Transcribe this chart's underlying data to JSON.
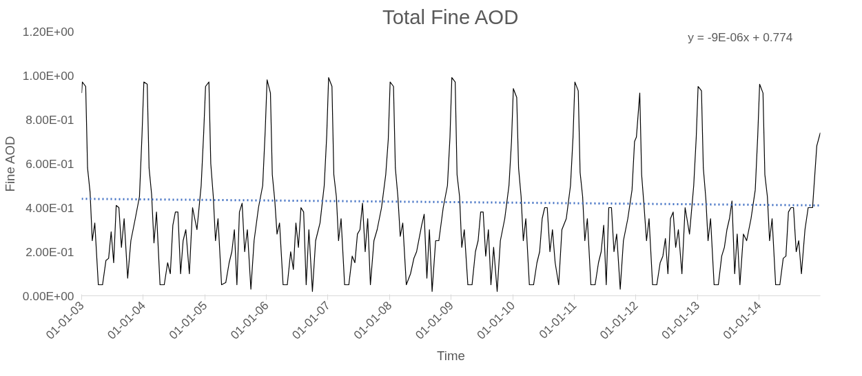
{
  "chart_data": {
    "type": "line",
    "title": "Total Fine AOD",
    "xlabel": "Time",
    "ylabel": "Fine AOD",
    "annotations": [
      "y = -9E-06x + 0.774"
    ],
    "xlim": [
      "2003-01-01",
      "2014-12-31"
    ],
    "ylim": [
      0,
      1.2
    ],
    "yticks": [
      {
        "value": 0,
        "label": "0.00E+00"
      },
      {
        "value": 0.2,
        "label": "2.00E-01"
      },
      {
        "value": 0.4,
        "label": "4.00E-01"
      },
      {
        "value": 0.6,
        "label": "6.00E-01"
      },
      {
        "value": 0.8,
        "label": "8.00E-01"
      },
      {
        "value": 1.0,
        "label": "1.00E+00"
      },
      {
        "value": 1.2,
        "label": "1.20E+00"
      }
    ],
    "xticks": [
      {
        "value": "2003-01-01",
        "label": "01-01-03"
      },
      {
        "value": "2004-01-01",
        "label": "01-01-04"
      },
      {
        "value": "2005-01-01",
        "label": "01-01-05"
      },
      {
        "value": "2006-01-01",
        "label": "01-01-06"
      },
      {
        "value": "2007-01-01",
        "label": "01-01-07"
      },
      {
        "value": "2008-01-01",
        "label": "01-01-08"
      },
      {
        "value": "2009-01-01",
        "label": "01-01-09"
      },
      {
        "value": "2010-01-01",
        "label": "01-01-10"
      },
      {
        "value": "2011-01-01",
        "label": "01-01-11"
      },
      {
        "value": "2012-01-01",
        "label": "01-01-12"
      },
      {
        "value": "2013-01-01",
        "label": "01-01-13"
      },
      {
        "value": "2014-01-01",
        "label": "01-01-14"
      }
    ],
    "grid": false,
    "series": [
      {
        "color": "#000000",
        "line_style": "solid",
        "x": [
          "2003-01-01",
          "2003-01-05",
          "2003-01-25",
          "2003-02-05",
          "2003-02-20",
          "2003-03-05",
          "2003-03-20",
          "2003-04-10",
          "2003-05-05",
          "2003-05-25",
          "2003-06-10",
          "2003-06-25",
          "2003-07-10",
          "2003-07-25",
          "2003-08-10",
          "2003-08-25",
          "2003-09-10",
          "2003-10-01",
          "2003-10-20",
          "2003-11-15",
          "2003-12-10",
          "2003-12-25",
          "2004-01-05",
          "2004-01-25",
          "2004-02-05",
          "2004-02-20",
          "2004-03-05",
          "2004-03-20",
          "2004-04-10",
          "2004-05-05",
          "2004-05-25",
          "2004-06-10",
          "2004-06-25",
          "2004-07-10",
          "2004-07-25",
          "2004-08-10",
          "2004-08-25",
          "2004-09-10",
          "2004-10-01",
          "2004-10-20",
          "2004-11-15",
          "2004-12-10",
          "2004-12-25",
          "2005-01-05",
          "2005-01-25",
          "2005-02-05",
          "2005-02-20",
          "2005-03-05",
          "2005-03-20",
          "2005-04-10",
          "2005-05-05",
          "2005-05-25",
          "2005-06-10",
          "2005-06-25",
          "2005-07-10",
          "2005-07-25",
          "2005-08-10",
          "2005-08-25",
          "2005-09-10",
          "2005-10-01",
          "2005-10-20",
          "2005-11-15",
          "2005-12-10",
          "2005-12-25",
          "2006-01-05",
          "2006-01-25",
          "2006-02-05",
          "2006-02-20",
          "2006-03-05",
          "2006-03-20",
          "2006-04-10",
          "2006-05-05",
          "2006-05-25",
          "2006-06-10",
          "2006-06-25",
          "2006-07-10",
          "2006-07-25",
          "2006-08-10",
          "2006-08-25",
          "2006-09-10",
          "2006-10-01",
          "2006-10-20",
          "2006-11-15",
          "2006-12-10",
          "2006-12-25",
          "2007-01-05",
          "2007-01-25",
          "2007-02-05",
          "2007-02-20",
          "2007-03-05",
          "2007-03-20",
          "2007-04-10",
          "2007-05-05",
          "2007-05-25",
          "2007-06-10",
          "2007-06-25",
          "2007-07-10",
          "2007-07-25",
          "2007-08-10",
          "2007-08-25",
          "2007-09-10",
          "2007-10-01",
          "2007-10-20",
          "2007-11-15",
          "2007-12-10",
          "2007-12-25",
          "2008-01-05",
          "2008-01-25",
          "2008-02-05",
          "2008-02-20",
          "2008-03-05",
          "2008-03-20",
          "2008-04-10",
          "2008-05-05",
          "2008-05-25",
          "2008-06-10",
          "2008-06-25",
          "2008-07-10",
          "2008-07-25",
          "2008-08-10",
          "2008-08-25",
          "2008-09-10",
          "2008-10-01",
          "2008-10-20",
          "2008-11-15",
          "2008-12-10",
          "2008-12-25",
          "2009-01-05",
          "2009-01-25",
          "2009-02-05",
          "2009-02-20",
          "2009-03-05",
          "2009-03-20",
          "2009-04-10",
          "2009-05-05",
          "2009-05-25",
          "2009-06-10",
          "2009-06-25",
          "2009-07-10",
          "2009-07-25",
          "2009-08-10",
          "2009-08-25",
          "2009-09-10",
          "2009-10-01",
          "2009-10-20",
          "2009-11-15",
          "2009-12-10",
          "2009-12-25",
          "2010-01-05",
          "2010-01-25",
          "2010-02-05",
          "2010-02-20",
          "2010-03-05",
          "2010-03-20",
          "2010-04-10",
          "2010-05-05",
          "2010-05-25",
          "2010-06-10",
          "2010-06-25",
          "2010-07-10",
          "2010-07-25",
          "2010-08-10",
          "2010-08-25",
          "2010-09-10",
          "2010-10-01",
          "2010-10-20",
          "2010-11-15",
          "2010-12-10",
          "2010-12-25",
          "2011-01-05",
          "2011-01-25",
          "2011-02-05",
          "2011-02-20",
          "2011-03-05",
          "2011-03-20",
          "2011-04-10",
          "2011-05-05",
          "2011-05-25",
          "2011-06-10",
          "2011-06-25",
          "2011-07-10",
          "2011-07-25",
          "2011-08-10",
          "2011-08-25",
          "2011-09-10",
          "2011-10-01",
          "2011-10-20",
          "2011-11-15",
          "2011-12-10",
          "2011-12-25",
          "2012-01-05",
          "2012-01-25",
          "2012-02-05",
          "2012-02-20",
          "2012-03-05",
          "2012-03-20",
          "2012-04-10",
          "2012-05-05",
          "2012-05-25",
          "2012-06-10",
          "2012-06-25",
          "2012-07-10",
          "2012-07-25",
          "2012-08-10",
          "2012-08-25",
          "2012-09-10",
          "2012-10-01",
          "2012-10-20",
          "2012-11-15",
          "2012-12-10",
          "2012-12-25",
          "2013-01-05",
          "2013-01-25",
          "2013-02-05",
          "2013-02-20",
          "2013-03-05",
          "2013-03-20",
          "2013-04-10",
          "2013-05-05",
          "2013-05-25",
          "2013-06-10",
          "2013-06-25",
          "2013-07-10",
          "2013-07-25",
          "2013-08-10",
          "2013-08-25",
          "2013-09-10",
          "2013-10-01",
          "2013-10-20",
          "2013-11-15",
          "2013-12-10",
          "2013-12-25",
          "2014-01-05",
          "2014-01-25",
          "2014-02-05",
          "2014-02-20",
          "2014-03-05",
          "2014-03-20",
          "2014-04-10",
          "2014-05-05",
          "2014-05-25",
          "2014-06-10",
          "2014-06-25",
          "2014-07-10",
          "2014-07-25",
          "2014-08-10",
          "2014-08-25",
          "2014-09-10",
          "2014-10-01",
          "2014-10-20",
          "2014-11-15",
          "2014-12-10",
          "2014-12-31"
        ],
        "values": [
          0.92,
          0.97,
          0.95,
          0.58,
          0.47,
          0.25,
          0.33,
          0.05,
          0.05,
          0.16,
          0.17,
          0.29,
          0.15,
          0.41,
          0.4,
          0.22,
          0.35,
          0.08,
          0.25,
          0.35,
          0.45,
          0.73,
          0.97,
          0.96,
          0.58,
          0.46,
          0.24,
          0.38,
          0.05,
          0.05,
          0.15,
          0.1,
          0.32,
          0.38,
          0.38,
          0.1,
          0.25,
          0.3,
          0.1,
          0.4,
          0.3,
          0.5,
          0.74,
          0.95,
          0.97,
          0.6,
          0.45,
          0.25,
          0.35,
          0.05,
          0.06,
          0.15,
          0.2,
          0.3,
          0.05,
          0.38,
          0.42,
          0.2,
          0.3,
          0.03,
          0.25,
          0.4,
          0.5,
          0.75,
          0.98,
          0.92,
          0.55,
          0.43,
          0.28,
          0.33,
          0.05,
          0.05,
          0.2,
          0.12,
          0.33,
          0.22,
          0.4,
          0.38,
          0.05,
          0.3,
          0.02,
          0.25,
          0.33,
          0.5,
          0.73,
          0.99,
          0.95,
          0.55,
          0.45,
          0.25,
          0.35,
          0.05,
          0.05,
          0.18,
          0.15,
          0.28,
          0.3,
          0.42,
          0.2,
          0.35,
          0.05,
          0.25,
          0.3,
          0.4,
          0.55,
          0.71,
          0.97,
          0.95,
          0.58,
          0.45,
          0.27,
          0.33,
          0.05,
          0.1,
          0.17,
          0.2,
          0.26,
          0.32,
          0.37,
          0.08,
          0.3,
          0.02,
          0.25,
          0.25,
          0.4,
          0.5,
          0.72,
          0.99,
          0.97,
          0.55,
          0.45,
          0.22,
          0.3,
          0.05,
          0.05,
          0.2,
          0.25,
          0.38,
          0.38,
          0.18,
          0.3,
          0.05,
          0.22,
          0.02,
          0.25,
          0.35,
          0.5,
          0.7,
          0.94,
          0.9,
          0.58,
          0.45,
          0.25,
          0.35,
          0.05,
          0.05,
          0.15,
          0.2,
          0.35,
          0.4,
          0.4,
          0.2,
          0.3,
          0.15,
          0.05,
          0.3,
          0.35,
          0.5,
          0.72,
          0.97,
          0.93,
          0.56,
          0.45,
          0.25,
          0.35,
          0.05,
          0.05,
          0.15,
          0.2,
          0.32,
          0.05,
          0.4,
          0.4,
          0.2,
          0.28,
          0.03,
          0.25,
          0.35,
          0.48,
          0.7,
          0.72,
          0.92,
          0.55,
          0.4,
          0.25,
          0.35,
          0.05,
          0.05,
          0.15,
          0.18,
          0.26,
          0.1,
          0.35,
          0.38,
          0.22,
          0.3,
          0.1,
          0.4,
          0.28,
          0.5,
          0.72,
          0.95,
          0.93,
          0.58,
          0.44,
          0.25,
          0.35,
          0.05,
          0.05,
          0.18,
          0.22,
          0.3,
          0.35,
          0.43,
          0.1,
          0.28,
          0.05,
          0.28,
          0.25,
          0.35,
          0.48,
          0.73,
          0.96,
          0.92,
          0.55,
          0.45,
          0.25,
          0.35,
          0.05,
          0.05,
          0.17,
          0.18,
          0.38,
          0.4,
          0.4,
          0.2,
          0.25,
          0.1,
          0.3,
          0.4,
          0.4,
          0.68,
          0.74
        ]
      },
      {
        "color": "#4472c4",
        "line_style": "dotted",
        "x": [
          "2003-01-01",
          "2014-12-31"
        ],
        "values": [
          0.44,
          0.41
        ]
      }
    ]
  }
}
